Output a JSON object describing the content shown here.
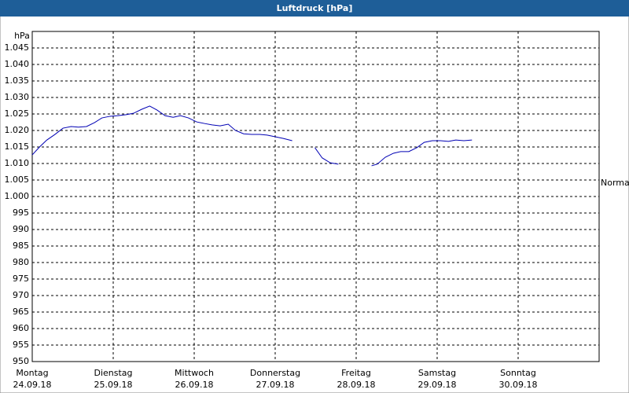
{
  "chart_data": {
    "type": "line",
    "title": "Luftdruck [hPa]",
    "y_label": "hPa",
    "xlim": [
      0,
      7
    ],
    "xticks": [
      {
        "value": 0,
        "label": [
          "Montag",
          "24.09.18"
        ]
      },
      {
        "value": 1,
        "label": [
          "Dienstag",
          "25.09.18"
        ]
      },
      {
        "value": 2,
        "label": [
          "Mittwoch",
          "26.09.18"
        ]
      },
      {
        "value": 3,
        "label": [
          "Donnerstag",
          "27.09.18"
        ]
      },
      {
        "value": 4,
        "label": [
          "Freitag",
          "28.09.18"
        ]
      },
      {
        "value": 5,
        "label": [
          "Samstag",
          "29.09.18"
        ]
      },
      {
        "value": 6,
        "label": [
          "Sonntag",
          "30.09.18"
        ]
      }
    ],
    "ylim": [
      950,
      1050
    ],
    "yticks": [
      950,
      955,
      960,
      965,
      970,
      975,
      980,
      985,
      990,
      995,
      {
        "value": 1000,
        "label": "1.000"
      },
      {
        "value": 1005,
        "label": "1.005"
      },
      {
        "value": 1010,
        "label": "1.010"
      },
      {
        "value": 1015,
        "label": "1.015"
      },
      {
        "value": 1020,
        "label": "1.020"
      },
      {
        "value": 1025,
        "label": "1.025"
      },
      {
        "value": 1030,
        "label": "1.030"
      },
      {
        "value": 1035,
        "label": "1.035"
      },
      {
        "value": 1040,
        "label": "1.040"
      },
      {
        "value": 1045,
        "label": "1.045"
      }
    ],
    "grid": true,
    "annotations": [
      {
        "text": "Normal",
        "y": 1004
      }
    ],
    "x": [
      0,
      0.09,
      0.18,
      0.28,
      0.38,
      0.48,
      0.57,
      0.67,
      0.77,
      0.86,
      0.96,
      1.06,
      1.16,
      1.25,
      1.35,
      1.45,
      1.54,
      1.64,
      1.74,
      1.83,
      1.93,
      2.03,
      2.13,
      2.22,
      2.32,
      2.42,
      2.51,
      2.61,
      2.71,
      2.81,
      2.9,
      3.0,
      3.1,
      3.21,
      3.4,
      3.49,
      3.58,
      3.68,
      3.78,
      4.0,
      4.19,
      4.26,
      4.36,
      4.46,
      4.55,
      4.65,
      4.75,
      4.84,
      4.94,
      5.04,
      5.14,
      5.23,
      5.33,
      5.43
    ],
    "series": [
      {
        "color": "#0000b4",
        "values": [
          1012.6,
          1015.0,
          1017.1,
          1018.8,
          1020.7,
          1021.2,
          1021.0,
          1021.2,
          1022.4,
          1023.8,
          1024.3,
          1024.5,
          1024.8,
          1025.2,
          1026.4,
          1027.4,
          1026.2,
          1024.5,
          1024.0,
          1024.5,
          1023.8,
          1022.6,
          1022.1,
          1021.7,
          1021.4,
          1021.9,
          1020.0,
          1019.0,
          1018.8,
          1018.8,
          1018.6,
          1018.1,
          1017.6,
          1016.9,
          null,
          1014.8,
          1011.7,
          1010.2,
          1009.8,
          null,
          1009.3,
          1009.8,
          1011.9,
          1013.1,
          1013.6,
          1013.6,
          1014.8,
          1016.4,
          1016.9,
          1016.9,
          1016.7,
          1017.1,
          1016.9,
          1017.1
        ]
      }
    ]
  }
}
